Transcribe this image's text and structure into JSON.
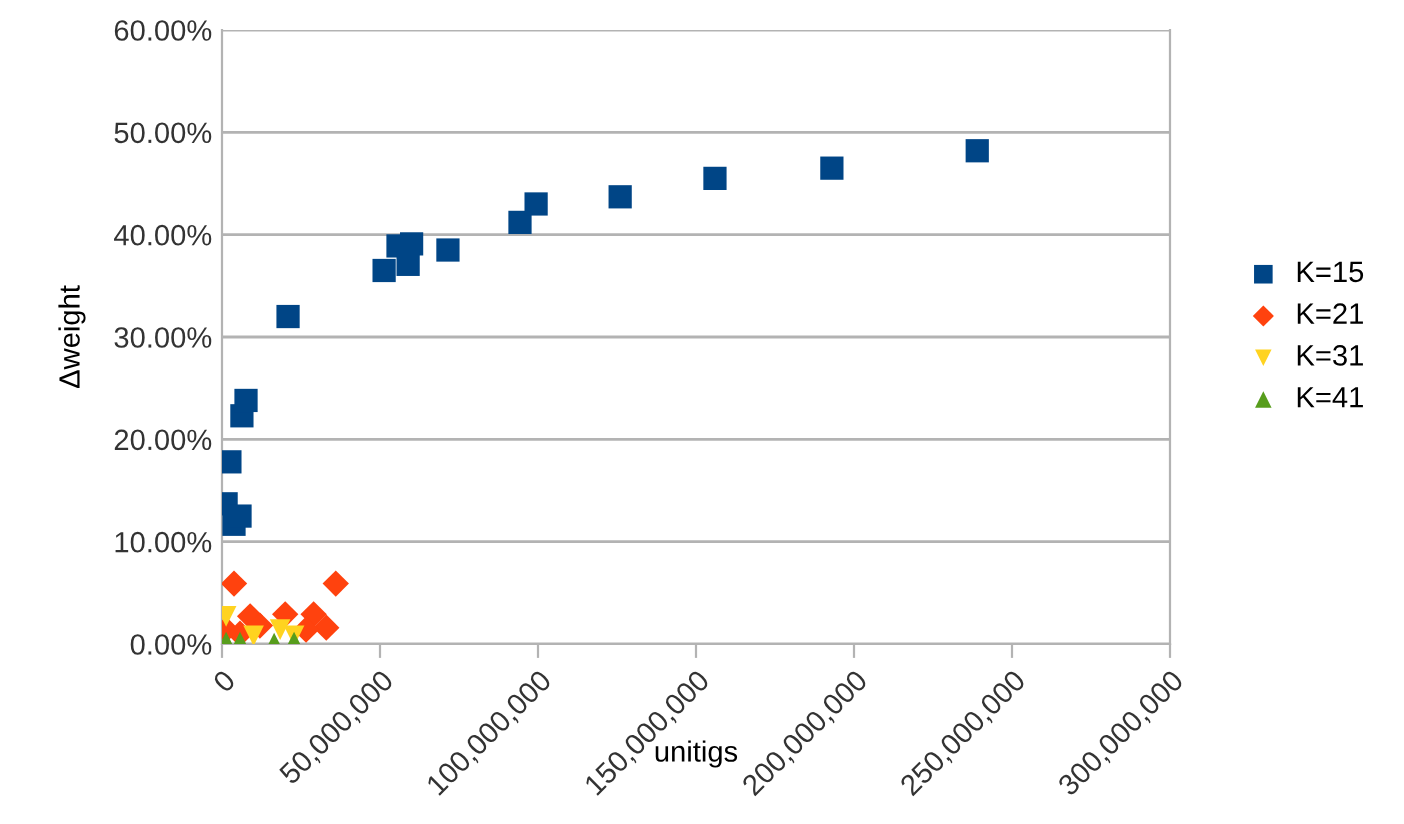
{
  "chart_data": {
    "type": "scatter",
    "xlabel": "unitigs",
    "ylabel": "Δweight",
    "xlim": [
      0,
      300000000
    ],
    "ylim": [
      0,
      60
    ],
    "xticks": [
      {
        "value": 0,
        "label": "0"
      },
      {
        "value": 50000000,
        "label": "50,000,000"
      },
      {
        "value": 100000000,
        "label": "100,000,000"
      },
      {
        "value": 150000000,
        "label": "150,000,000"
      },
      {
        "value": 200000000,
        "label": "200,000,000"
      },
      {
        "value": 250000000,
        "label": "250,000,000"
      },
      {
        "value": 300000000,
        "label": "300,000,000"
      }
    ],
    "yticks": [
      {
        "value": 0,
        "label": "0.00%"
      },
      {
        "value": 10,
        "label": "10.00%"
      },
      {
        "value": 20,
        "label": "20.00%"
      },
      {
        "value": 30,
        "label": "30.00%"
      },
      {
        "value": 40,
        "label": "40.00%"
      },
      {
        "value": 50,
        "label": "50.00%"
      },
      {
        "value": 60,
        "label": "60.00%"
      }
    ],
    "grid": "y",
    "legend": "right",
    "series": [
      {
        "name": "K=15",
        "color": "#004586",
        "marker": "square",
        "x": [
          1300000,
          2500000,
          3800000,
          5700000,
          6300000,
          7600000,
          20900000,
          51300000,
          55700000,
          58900000,
          60000000,
          71500000,
          94300000,
          99400000,
          126000000,
          156000000,
          193000000,
          239000000
        ],
        "values": [
          13.7,
          17.8,
          11.7,
          12.5,
          22.3,
          23.8,
          32,
          36.5,
          38.9,
          37.1,
          39.1,
          38.5,
          41.2,
          43,
          43.7,
          45.5,
          46.5,
          48.2
        ]
      },
      {
        "name": "K=21",
        "color": "#ff420e",
        "marker": "diamond",
        "x": [
          3800000,
          36000000,
          20000000,
          29000000,
          33000000,
          26600000,
          8900000,
          1300000,
          5700000,
          12000000
        ],
        "values": [
          5.9,
          5.9,
          2.9,
          2.9,
          1.6,
          1.4,
          2.7,
          1.4,
          1,
          1.8
        ]
      },
      {
        "name": "K=31",
        "color": "#ffd320",
        "marker": "triangle_down",
        "x": [
          1300000,
          18400000,
          22800000,
          10000000
        ],
        "values": [
          2.7,
          1.4,
          0.8,
          0.8
        ]
      },
      {
        "name": "K=41",
        "color": "#579d1c",
        "marker": "triangle",
        "x": [
          1300000,
          5700000,
          16500000,
          22800000
        ],
        "values": [
          0.2,
          0.2,
          0.1,
          0.2
        ]
      }
    ]
  }
}
